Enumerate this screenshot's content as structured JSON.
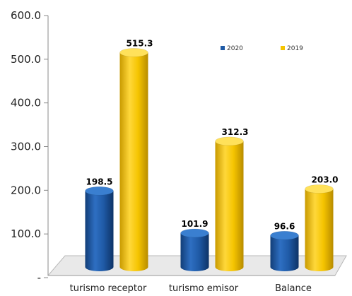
{
  "chart_data": {
    "type": "bar",
    "categories": [
      "turismo receptor",
      "turismo emisor",
      "Balance"
    ],
    "series": [
      {
        "name": "2020",
        "values": [
          198.5,
          101.9,
          96.6
        ],
        "labels": [
          "198.5",
          "101.9",
          "96.6"
        ],
        "color": "#1f5aa6"
      },
      {
        "name": "2019",
        "values": [
          515.3,
          312.3,
          203.0
        ],
        "labels": [
          "515.3",
          "312.3",
          "203.0"
        ],
        "color": "#f5c400"
      }
    ],
    "yticks": [
      "600.0",
      "500.0",
      "400.0",
      "300.0",
      "200.0",
      "100.0",
      "-"
    ],
    "ytick_values": [
      600,
      500,
      400,
      300,
      200,
      100,
      0
    ],
    "ylim": [
      0,
      600
    ],
    "grid": false,
    "legend_position": "top-right",
    "style": "3d-cylinder"
  }
}
